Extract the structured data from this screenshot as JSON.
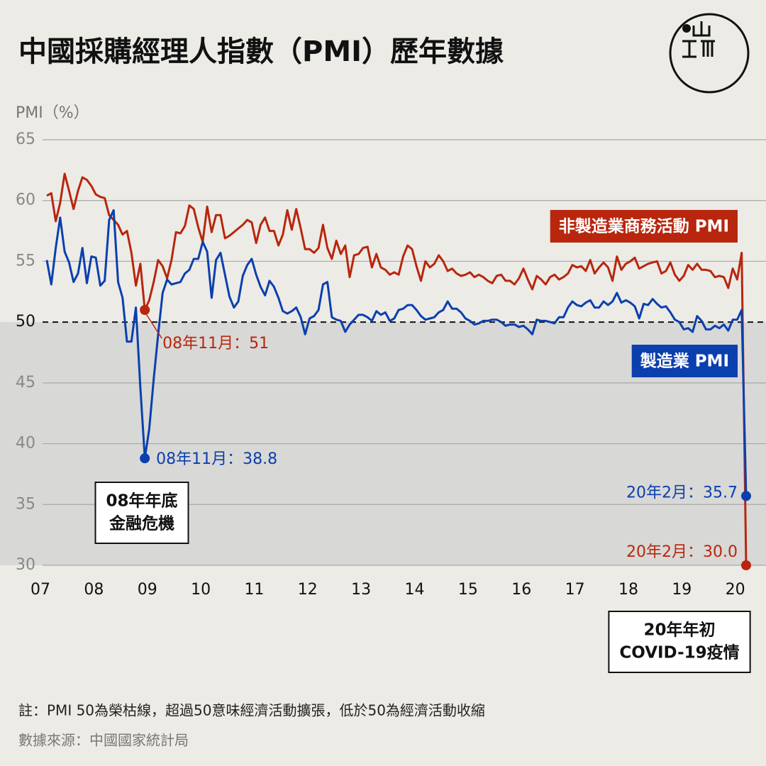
{
  "chart_data": {
    "type": "line",
    "title": "中國採購經理人指數（PMI）歷年數據",
    "y_label": "PMI（%）",
    "ylim": [
      30,
      65
    ],
    "yticks": [
      30,
      35,
      40,
      45,
      50,
      55,
      60,
      65
    ],
    "grid": true,
    "reference_line": 50,
    "categories": [
      "07",
      null,
      null,
      null,
      null,
      null,
      null,
      null,
      null,
      null,
      null,
      null,
      "08",
      null,
      null,
      null,
      null,
      null,
      null,
      null,
      null,
      null,
      null,
      null,
      "09",
      null,
      null,
      null,
      null,
      null,
      null,
      null,
      null,
      null,
      null,
      null,
      "10",
      null,
      null,
      null,
      null,
      null,
      null,
      null,
      null,
      null,
      null,
      null,
      "11",
      null,
      null,
      null,
      null,
      null,
      null,
      null,
      null,
      null,
      null,
      null,
      "12",
      null,
      null,
      null,
      null,
      null,
      null,
      null,
      null,
      null,
      null,
      null,
      "13",
      null,
      null,
      null,
      null,
      null,
      null,
      null,
      null,
      null,
      null,
      null,
      "14",
      null,
      null,
      null,
      null,
      null,
      null,
      null,
      null,
      null,
      null,
      null,
      "15",
      null,
      null,
      null,
      null,
      null,
      null,
      null,
      null,
      null,
      null,
      null,
      "16",
      null,
      null,
      null,
      null,
      null,
      null,
      null,
      null,
      null,
      null,
      null,
      "17",
      null,
      null,
      null,
      null,
      null,
      null,
      null,
      null,
      null,
      null,
      null,
      "18",
      null,
      null,
      null,
      null,
      null,
      null,
      null,
      null,
      null,
      null,
      null,
      "19",
      null,
      null,
      null,
      null,
      null,
      null,
      null,
      null,
      null,
      null,
      null,
      "20",
      null
    ],
    "series": [
      {
        "name": "非製造業商務活動 PMI",
        "color": "#b8260d",
        "values": [
          60.4,
          60.6,
          58.3,
          59.8,
          62.2,
          60.8,
          59.3,
          60.8,
          61.9,
          61.7,
          61.2,
          60.5,
          60.3,
          60.2,
          58.8,
          58.4,
          58.0,
          57.2,
          57.5,
          55.7,
          53.0,
          54.8,
          51,
          51.8,
          53.3,
          55.1,
          54.6,
          53.6,
          55.1,
          57.4,
          57.3,
          57.9,
          59.6,
          59.3,
          57.8,
          56.6,
          59.5,
          57.4,
          58.8,
          58.8,
          56.9,
          57.1,
          57.4,
          57.7,
          58.0,
          58.4,
          58.2,
          56.5,
          58.0,
          58.6,
          57.5,
          57.5,
          56.3,
          57.2,
          59.2,
          57.6,
          59.3,
          57.7,
          56.0,
          56.0,
          55.7,
          56.1,
          58.0,
          56.1,
          55.2,
          56.7,
          55.6,
          56.3,
          53.7,
          55.5,
          55.6,
          56.1,
          56.2,
          54.5,
          55.6,
          54.5,
          54.3,
          53.9,
          54.1,
          53.9,
          55.4,
          56.3,
          56.0,
          54.6,
          53.4,
          55.0,
          54.5,
          54.8,
          55.5,
          55.0,
          54.2,
          54.4,
          54.0,
          53.8,
          53.9,
          54.1,
          53.7,
          53.9,
          53.7,
          53.4,
          53.2,
          53.8,
          53.9,
          53.4,
          53.4,
          53.1,
          53.6,
          54.4,
          53.5,
          52.7,
          53.8,
          53.5,
          53.1,
          53.7,
          53.9,
          53.5,
          53.7,
          54.0,
          54.7,
          54.5,
          54.6,
          54.2,
          55.1,
          54.0,
          54.5,
          54.9,
          54.5,
          53.4,
          55.4,
          54.3,
          54.8,
          55.0,
          55.3,
          54.4,
          54.6,
          54.8,
          54.9,
          55.0,
          54.0,
          54.2,
          54.9,
          53.9,
          53.4,
          53.8,
          54.7,
          54.3,
          54.8,
          54.3,
          54.3,
          54.2,
          53.7,
          53.8,
          53.7,
          52.8,
          54.4,
          53.5,
          55.7,
          30.0
        ],
        "value_labels": [
          null,
          null,
          null,
          null,
          null,
          null,
          null,
          null,
          null,
          null,
          null,
          null,
          null,
          null,
          null,
          null,
          null,
          null,
          null,
          null,
          null,
          null,
          "08年11月：51",
          null,
          null,
          null,
          null,
          null,
          null,
          null,
          null,
          null,
          null,
          null,
          null,
          null,
          null,
          null,
          null,
          null,
          null,
          null,
          null,
          null,
          null,
          null,
          null,
          null,
          null,
          null,
          null,
          null,
          null,
          null,
          null,
          null,
          null,
          null,
          null,
          null,
          null,
          null,
          null,
          null,
          null,
          null,
          null,
          null,
          null,
          null,
          null,
          null,
          null,
          null,
          null,
          null,
          null,
          null,
          null,
          null,
          null,
          null,
          null,
          null,
          null,
          null,
          null,
          null,
          null,
          null,
          null,
          null,
          null,
          null,
          null,
          null,
          null,
          null,
          null,
          null,
          null,
          null,
          null,
          null,
          null,
          null,
          null,
          null,
          null,
          null,
          null,
          null,
          null,
          null,
          null,
          null,
          null,
          null,
          null,
          null,
          null,
          null,
          null,
          null,
          null,
          null,
          null,
          null,
          null,
          null,
          null,
          null,
          null,
          null,
          null,
          null,
          null,
          null,
          null,
          null,
          null,
          null,
          null,
          null,
          null,
          null,
          null,
          null,
          null,
          null,
          null,
          null,
          null,
          null,
          null,
          null,
          null,
          "20年2月：30.0"
        ]
      },
      {
        "name": "製造業 PMI",
        "color": "#0b3fae",
        "values": [
          55.1,
          53.1,
          56.1,
          58.6,
          55.8,
          54.9,
          53.3,
          54.0,
          56.1,
          53.2,
          55.4,
          55.3,
          53.0,
          53.4,
          58.4,
          59.2,
          53.3,
          52.0,
          48.4,
          48.4,
          51.2,
          44.6,
          38.8,
          41.2,
          45.3,
          49.0,
          52.4,
          53.5,
          53.1,
          53.2,
          53.3,
          54.0,
          54.3,
          55.2,
          55.2,
          56.6,
          55.8,
          52.0,
          55.1,
          55.7,
          53.9,
          52.1,
          51.2,
          51.7,
          53.8,
          54.7,
          55.2,
          53.9,
          52.9,
          52.2,
          53.4,
          52.9,
          52.0,
          50.9,
          50.7,
          50.9,
          51.2,
          50.4,
          49.0,
          50.3,
          50.5,
          51.0,
          53.1,
          53.3,
          50.4,
          50.2,
          50.1,
          49.2,
          49.8,
          50.2,
          50.6,
          50.6,
          50.4,
          50.1,
          50.9,
          50.6,
          50.8,
          50.1,
          50.3,
          51.0,
          51.1,
          51.4,
          51.4,
          51.0,
          50.5,
          50.2,
          50.3,
          50.4,
          50.8,
          51.0,
          51.7,
          51.1,
          51.1,
          50.8,
          50.3,
          50.1,
          49.8,
          49.9,
          50.1,
          50.1,
          50.2,
          50.2,
          50.0,
          49.7,
          49.8,
          49.8,
          49.6,
          49.7,
          49.4,
          49.0,
          50.2,
          50.1,
          50.1,
          50.0,
          49.9,
          50.4,
          50.4,
          51.2,
          51.7,
          51.4,
          51.3,
          51.6,
          51.8,
          51.2,
          51.2,
          51.7,
          51.4,
          51.7,
          52.4,
          51.6,
          51.8,
          51.6,
          51.3,
          50.3,
          51.5,
          51.4,
          51.9,
          51.5,
          51.2,
          51.3,
          50.8,
          50.2,
          50.0,
          49.4,
          49.5,
          49.2,
          50.5,
          50.1,
          49.4,
          49.4,
          49.7,
          49.5,
          49.8,
          49.3,
          50.2,
          50.2,
          51.0,
          35.7
        ],
        "value_labels": [
          null,
          null,
          null,
          null,
          null,
          null,
          null,
          null,
          null,
          null,
          null,
          null,
          null,
          null,
          null,
          null,
          null,
          null,
          null,
          null,
          null,
          null,
          "08年11月：38.8",
          null,
          null,
          null,
          null,
          null,
          null,
          null,
          null,
          null,
          null,
          null,
          null,
          null,
          null,
          null,
          null,
          null,
          null,
          null,
          null,
          null,
          null,
          null,
          null,
          null,
          null,
          null,
          null,
          null,
          null,
          null,
          null,
          null,
          null,
          null,
          null,
          null,
          null,
          null,
          null,
          null,
          null,
          null,
          null,
          null,
          null,
          null,
          null,
          null,
          null,
          null,
          null,
          null,
          null,
          null,
          null,
          null,
          null,
          null,
          null,
          null,
          null,
          null,
          null,
          null,
          null,
          null,
          null,
          null,
          null,
          null,
          null,
          null,
          null,
          null,
          null,
          null,
          null,
          null,
          null,
          null,
          null,
          null,
          null,
          null,
          null,
          null,
          null,
          null,
          null,
          null,
          null,
          null,
          null,
          null,
          null,
          null,
          null,
          null,
          null,
          null,
          null,
          null,
          null,
          null,
          null,
          null,
          null,
          null,
          null,
          null,
          null,
          null,
          null,
          null,
          null,
          null,
          null,
          null,
          null,
          null,
          null,
          null,
          null,
          null,
          null,
          null,
          null,
          null,
          null,
          null,
          null,
          null,
          null,
          "20年2月：35.7"
        ]
      }
    ],
    "annotations": [
      {
        "lines": [
          "08年年底",
          "金融危機"
        ]
      },
      {
        "lines": [
          "20年年初",
          "COVID-19疫情"
        ]
      }
    ],
    "note": "註：PMI 50為榮枯線，超過50意味經濟活動擴張，低於50為經濟活動收縮",
    "source": "數據來源：中國國家統計局"
  }
}
